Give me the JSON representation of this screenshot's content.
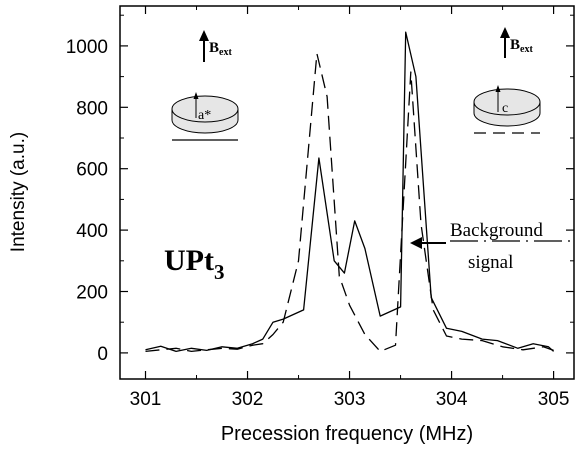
{
  "chart_data": {
    "type": "line",
    "title": "",
    "xlabel": "Precession frequency (MHz)",
    "ylabel": "Intensity (a.u.)",
    "xlim": [
      300.75,
      305.2
    ],
    "ylim": [
      -85,
      1130
    ],
    "xticks": [
      301,
      302,
      303,
      304,
      305
    ],
    "yticks": [
      0,
      200,
      400,
      600,
      800,
      1000
    ],
    "grid": false,
    "series": [
      {
        "style": "solid",
        "x": [
          301.0,
          301.15,
          301.3,
          301.45,
          301.6,
          301.75,
          301.9,
          302.05,
          302.15,
          302.25,
          302.35,
          302.55,
          302.7,
          302.85,
          302.95,
          303.05,
          303.15,
          303.3,
          303.5,
          303.55,
          303.65,
          303.8,
          303.95,
          304.1,
          304.3,
          304.45,
          304.65,
          304.8,
          304.95,
          305.0
        ],
        "y": [
          10,
          22,
          5,
          15,
          8,
          20,
          15,
          30,
          45,
          100,
          110,
          140,
          635,
          300,
          260,
          430,
          340,
          120,
          150,
          1045,
          900,
          180,
          80,
          70,
          45,
          40,
          15,
          30,
          20,
          5
        ]
      },
      {
        "style": "dashed",
        "x": [
          301.0,
          301.15,
          301.3,
          301.45,
          301.6,
          301.75,
          301.9,
          302.05,
          302.15,
          302.25,
          302.35,
          302.5,
          302.68,
          302.78,
          302.9,
          303.0,
          303.15,
          303.3,
          303.45,
          303.6,
          303.7,
          303.82,
          303.95,
          304.1,
          304.3,
          304.5,
          304.7,
          304.9,
          305.0
        ],
        "y": [
          5,
          10,
          15,
          5,
          10,
          15,
          12,
          25,
          30,
          60,
          100,
          300,
          975,
          835,
          250,
          155,
          60,
          5,
          25,
          915,
          420,
          140,
          55,
          45,
          40,
          20,
          10,
          20,
          8
        ]
      }
    ],
    "annotations": {
      "compound_main": "UPt",
      "compound_sub": "3",
      "background_line1": "Background",
      "background_line2": "signal",
      "field_left": "B",
      "field_left_sub": "ext",
      "field_right": "B",
      "field_right_sub": "ext",
      "axis_left": "a*",
      "axis_right": "c"
    }
  }
}
